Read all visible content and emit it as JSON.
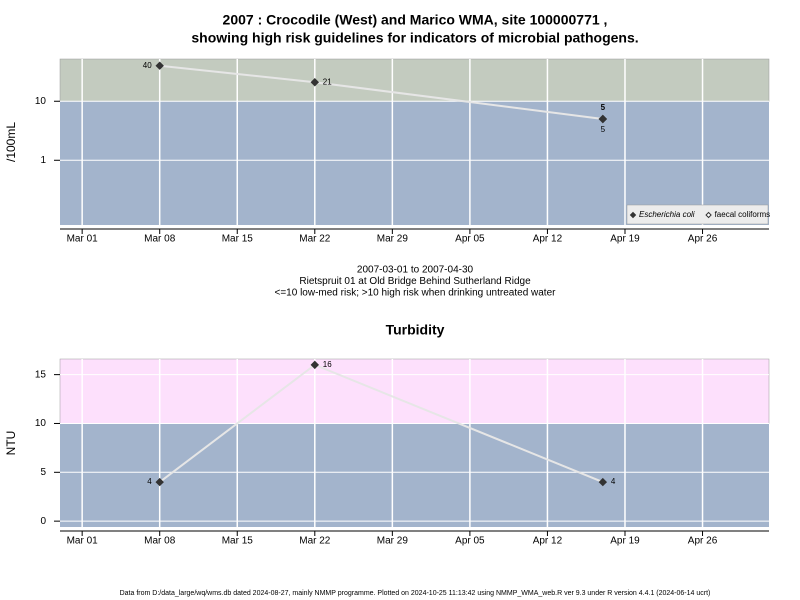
{
  "chart_data": [
    {
      "type": "line",
      "title": [
        "2007 : Crocodile (West) and Marico WMA, site 100000771 ,",
        "showing high risk guidelines for indicators of microbial pathogens."
      ],
      "ylabel": "/100mL",
      "log_scale": true,
      "ylim": [
        0.08,
        52
      ],
      "yticks": [
        1,
        10
      ],
      "xlim": [
        "2007-02-27",
        "2007-05-02"
      ],
      "xticks": [
        {
          "value": "2007-03-01",
          "label": "Mar 01"
        },
        {
          "value": "2007-03-08",
          "label": "Mar 08"
        },
        {
          "value": "2007-03-15",
          "label": "Mar 15"
        },
        {
          "value": "2007-03-22",
          "label": "Mar 22"
        },
        {
          "value": "2007-03-29",
          "label": "Mar 29"
        },
        {
          "value": "2007-04-05",
          "label": "Apr 05"
        },
        {
          "value": "2007-04-12",
          "label": "Apr 12"
        },
        {
          "value": "2007-04-19",
          "label": "Apr 19"
        },
        {
          "value": "2007-04-26",
          "label": "Apr 26"
        }
      ],
      "grid": true,
      "threshold": 10,
      "band_colors": {
        "above": "#c3cbbf",
        "below": "#a3b4cc"
      },
      "legend": "bottom-right",
      "series": [
        {
          "name": "Escherichia coli",
          "color": "#333333",
          "marker": "filled",
          "x": [
            "2007-03-08",
            "2007-03-22",
            "2007-04-17"
          ],
          "values": [
            40,
            21,
            5
          ]
        },
        {
          "name": "faecal coliforms",
          "color": "#333333",
          "marker": "open",
          "x": [
            "2007-04-17"
          ],
          "values": [
            5
          ]
        }
      ],
      "notes": [
        "2007-03-01 to 2007-04-30",
        "Rietspruit 01 at Old Bridge Behind Sutherland Ridge",
        "<=10 low-med risk; >10 high risk when drinking untreated water"
      ]
    },
    {
      "type": "line",
      "title": [
        "Turbidity"
      ],
      "ylabel": "NTU",
      "log_scale": false,
      "ylim": [
        -0.6,
        16.6
      ],
      "yticks": [
        0,
        5,
        10,
        15
      ],
      "xlim": [
        "2007-02-27",
        "2007-05-02"
      ],
      "xticks": [
        {
          "value": "2007-03-01",
          "label": "Mar 01"
        },
        {
          "value": "2007-03-08",
          "label": "Mar 08"
        },
        {
          "value": "2007-03-15",
          "label": "Mar 15"
        },
        {
          "value": "2007-03-22",
          "label": "Mar 22"
        },
        {
          "value": "2007-03-29",
          "label": "Mar 29"
        },
        {
          "value": "2007-04-05",
          "label": "Apr 05"
        },
        {
          "value": "2007-04-12",
          "label": "Apr 12"
        },
        {
          "value": "2007-04-19",
          "label": "Apr 19"
        },
        {
          "value": "2007-04-26",
          "label": "Apr 26"
        }
      ],
      "grid": true,
      "threshold": 10,
      "band_colors": {
        "above": "#fde0fc",
        "below": "#a3b4cc"
      },
      "series": [
        {
          "name": "Turbidity",
          "color": "#333333",
          "marker": "filled",
          "x": [
            "2007-03-08",
            "2007-03-22",
            "2007-04-17"
          ],
          "values": [
            4,
            16,
            4
          ]
        }
      ]
    }
  ],
  "footer": "Data from D:/data_large/wq/wms.db dated 2024-08-27, mainly NMMP programme. Plotted on 2024-10-25 11:13:42 using NMMP_WMA_web.R ver 9.3 under R version 4.4.1 (2024-06-14 ucrt)"
}
